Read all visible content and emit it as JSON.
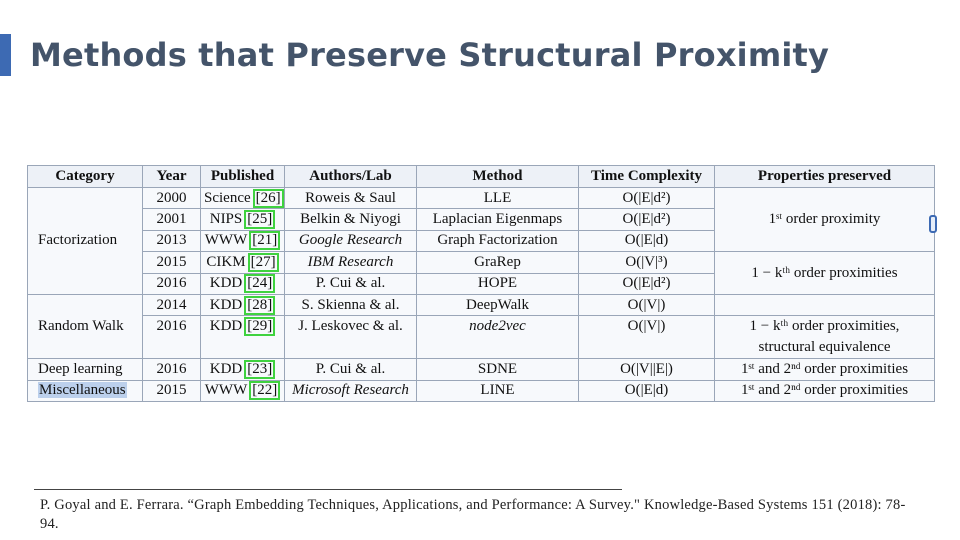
{
  "slide": {
    "title": "Methods that Preserve Structural Proximity"
  },
  "table": {
    "headers": [
      "Category",
      "Year",
      "Published",
      "Authors/Lab",
      "Method",
      "Time Complexity",
      "Properties preserved"
    ],
    "categories": {
      "factorization": "Factorization",
      "random_walk": "Random Walk",
      "deep_learning": "Deep learning",
      "miscellaneous": "Miscellaneous"
    },
    "rows": [
      {
        "year": "2000",
        "venue": "Science",
        "ref": "[26]",
        "authors": "Roweis & Saul",
        "method": "LLE",
        "complexity": "O(|E|d²)"
      },
      {
        "year": "2001",
        "venue": "NIPS",
        "ref": "[25]",
        "authors": "Belkin & Niyogi",
        "method": "Laplacian Eigenmaps",
        "complexity": "O(|E|d²)"
      },
      {
        "year": "2013",
        "venue": "WWW",
        "ref": "[21]",
        "authors": "Google Research",
        "method": "Graph Factorization",
        "complexity": "O(|E|d)"
      },
      {
        "year": "2015",
        "venue": "CIKM",
        "ref": "[27]",
        "authors": "IBM Research",
        "method": "GraRep",
        "complexity": "O(|V|³)"
      },
      {
        "year": "2016",
        "venue": "KDD",
        "ref": "[24]",
        "authors": "P. Cui & al.",
        "method": "HOPE",
        "complexity": "O(|E|d²)"
      },
      {
        "year": "2014",
        "venue": "KDD",
        "ref": "[28]",
        "authors": "S. Skienna & al.",
        "method": "DeepWalk",
        "complexity": "O(|V|)"
      },
      {
        "year": "2016",
        "venue": "KDD",
        "ref": "[29]",
        "authors": "J. Leskovec & al.",
        "method": "node2vec",
        "complexity": "O(|V|)"
      },
      {
        "year": "2016",
        "venue": "KDD",
        "ref": "[23]",
        "authors": "P. Cui & al.",
        "method": "SDNE",
        "complexity": "O(|V||E|)"
      },
      {
        "year": "2015",
        "venue": "WWW",
        "ref": "[22]",
        "authors": "Microsoft Research",
        "method": "LINE",
        "complexity": "O(|E|d)"
      }
    ],
    "properties": {
      "first_order": "1ˢᵗ order proximity",
      "k_order": "1 − kᵗʰ order proximities",
      "rw_line1": "1 − kᵗʰ order proximities,",
      "rw_line2": "structural equivalence",
      "first_second_a": "1ˢᵗ and 2ⁿᵈ order proximities",
      "first_second_b": "1ˢᵗ and 2ⁿᵈ order proximities"
    }
  },
  "footnote": {
    "text": "P. Goyal and E. Ferrara. “Graph Embedding Techniques, Applications, and Performance: A Survey.\" Knowledge-Based Systems 151 (2018): 78-94."
  }
}
